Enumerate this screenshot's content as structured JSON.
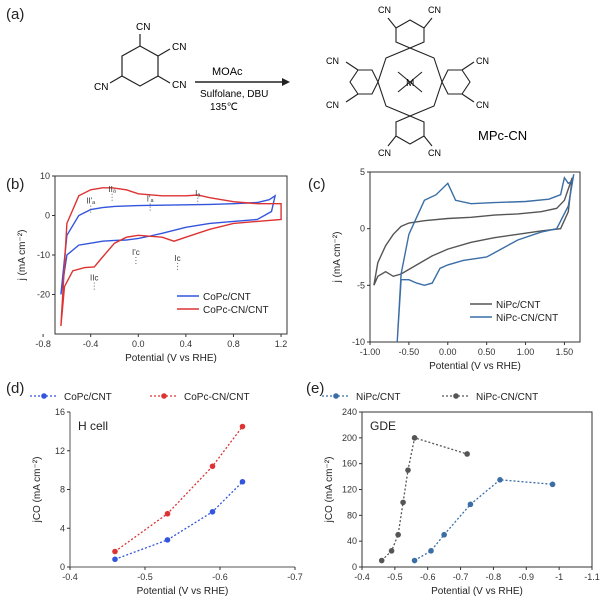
{
  "scheme": {
    "label": "(a)",
    "reactant_groups": [
      "CN",
      "CN",
      "CN",
      "CN"
    ],
    "reagent_top": "MOAc",
    "reagent_mid": "Sulfolane, DBU",
    "reagent_temp": "135℃",
    "product_groups": [
      "CN",
      "CN",
      "CN",
      "CN",
      "CN",
      "CN",
      "CN",
      "CN"
    ],
    "metal": "M",
    "product_name": "MPc-CN"
  },
  "colors": {
    "blue": "#3355dd",
    "red": "#dd3333",
    "gray": "#555555",
    "steel": "#3a6ea5"
  },
  "chart_data": [
    {
      "id": "b",
      "label": "(b)",
      "type": "line",
      "xlabel": "Potential (V vs RHE)",
      "ylabel": "j (mA cm⁻²)",
      "xlim": [
        -0.7,
        1.25
      ],
      "ylim": [
        -30,
        10
      ],
      "xticks": [
        "-0.8",
        "-0.4",
        "0.0",
        "0.4",
        "0.8",
        "1.2"
      ],
      "xtick_values": [
        -0.8,
        -0.4,
        0,
        0.4,
        0.8,
        1.2
      ],
      "yticks": [
        "10",
        "0",
        "-10",
        "-20"
      ],
      "ytick_values": [
        10,
        0,
        -10,
        -20
      ],
      "annotations": [
        {
          "text": "II'ₐ",
          "x": -0.4,
          "y": 3
        },
        {
          "text": "IIₐ",
          "x": -0.22,
          "y": 6
        },
        {
          "text": "I'ₐ",
          "x": 0.1,
          "y": 3.5
        },
        {
          "text": "Iₐ",
          "x": 0.5,
          "y": 5
        },
        {
          "text": "I'c",
          "x": -0.02,
          "y": -10
        },
        {
          "text": "Ic",
          "x": 0.33,
          "y": -11.5
        },
        {
          "text": "IIc",
          "x": -0.37,
          "y": -16.5
        }
      ],
      "series": [
        {
          "name": "CoPc/CNT",
          "color": "blue",
          "x": [
            -0.65,
            -0.6,
            -0.5,
            -0.4,
            -0.3,
            -0.2,
            0,
            0.2,
            0.4,
            0.6,
            0.8,
            1.0,
            1.1,
            1.15,
            1.12,
            1.0,
            0.8,
            0.6,
            0.4,
            0.2,
            0.1,
            0,
            -0.1,
            -0.2,
            -0.3,
            -0.4,
            -0.5,
            -0.6,
            -0.65
          ],
          "y": [
            -20,
            -5,
            0,
            1.5,
            2,
            2.3,
            2.5,
            2.6,
            2.7,
            2.8,
            3,
            3.3,
            4,
            5,
            1,
            -1,
            -1.5,
            -2,
            -3,
            -4.5,
            -5.2,
            -5.8,
            -6.2,
            -6.3,
            -6.5,
            -7,
            -7.5,
            -10,
            -20
          ]
        },
        {
          "name": "CoPc-CN/CNT",
          "color": "red",
          "x": [
            -0.65,
            -0.6,
            -0.5,
            -0.4,
            -0.3,
            -0.22,
            -0.1,
            0,
            0.2,
            0.4,
            0.5,
            0.6,
            0.8,
            1.0,
            1.2,
            1.2,
            1.0,
            0.8,
            0.6,
            0.4,
            0.3,
            0.2,
            0,
            -0.1,
            -0.2,
            -0.3,
            -0.37,
            -0.45,
            -0.55,
            -0.62,
            -0.65
          ],
          "y": [
            -28,
            -2,
            5,
            6.5,
            7,
            7,
            6.5,
            5.5,
            5,
            5,
            5.2,
            4.5,
            3.5,
            3,
            3,
            -1,
            -1.5,
            -2,
            -3.5,
            -5.5,
            -6.5,
            -5.5,
            -5,
            -5.5,
            -7,
            -10.5,
            -13,
            -13.2,
            -14,
            -18,
            -28
          ]
        }
      ],
      "legend": "bottom-right"
    },
    {
      "id": "c",
      "label": "(c)",
      "type": "line",
      "xlabel": "Potential (V vs RHE)",
      "ylabel": "j (mA cm⁻²)",
      "xlim": [
        -1.0,
        1.7
      ],
      "ylim": [
        -10,
        5
      ],
      "xticks": [
        "-1.00",
        "-0.50",
        "0.00",
        "0.50",
        "1.00",
        "1.50"
      ],
      "xtick_values": [
        -1.0,
        -0.5,
        0,
        0.5,
        1.0,
        1.5
      ],
      "yticks": [
        "5",
        "0",
        "-5",
        "-10"
      ],
      "ytick_values": [
        5,
        0,
        -5,
        -10
      ],
      "series": [
        {
          "name": "NiPc/CNT",
          "color": "gray",
          "x": [
            -0.95,
            -0.9,
            -0.8,
            -0.7,
            -0.6,
            -0.5,
            -0.3,
            0,
            0.3,
            0.6,
            0.9,
            1.2,
            1.4,
            1.5,
            1.55,
            1.6,
            1.55,
            1.45,
            1.2,
            0.9,
            0.6,
            0.3,
            0,
            -0.2,
            -0.4,
            -0.6,
            -0.7,
            -0.8,
            -0.9,
            -0.95
          ],
          "y": [
            -5,
            -3,
            -1.5,
            -0.5,
            0.2,
            0.5,
            0.7,
            0.9,
            1,
            1.2,
            1.3,
            1.5,
            1.8,
            2.5,
            3.5,
            4.5,
            1.5,
            0,
            -0.2,
            -0.5,
            -0.8,
            -1.2,
            -1.8,
            -2.4,
            -3.2,
            -4,
            -4.2,
            -3.8,
            -4.2,
            -5
          ]
        },
        {
          "name": "NiPc-CN/CNT",
          "color": "steel",
          "x": [
            -0.65,
            -0.6,
            -0.5,
            -0.3,
            -0.15,
            0,
            0.1,
            0.3,
            0.6,
            1.0,
            1.3,
            1.45,
            1.5,
            1.55,
            1.6,
            1.62,
            1.55,
            1.4,
            1.2,
            0.9,
            0.5,
            0.2,
            0,
            -0.1,
            -0.2,
            -0.3,
            -0.4,
            -0.5,
            -0.6,
            -0.65
          ],
          "y": [
            -10,
            -4,
            -0.5,
            2.5,
            3,
            4,
            2.5,
            2.2,
            2.3,
            2.4,
            2.6,
            3,
            4.5,
            4,
            4.2,
            4.8,
            2,
            0,
            -0.3,
            -1,
            -2.5,
            -2.8,
            -3.2,
            -3.5,
            -4.8,
            -5,
            -4.8,
            -4.5,
            -4.5,
            -10
          ]
        }
      ],
      "legend": "bottom-right"
    },
    {
      "id": "d",
      "label": "(d)",
      "type": "line",
      "inner_label": "H cell",
      "xlabel": "Potential (V vs RHE)",
      "ylabel": "jCO (mA cm⁻²)",
      "xlim": [
        -0.4,
        -0.7
      ],
      "ylim": [
        0,
        16
      ],
      "xticks": [
        "-0.4",
        "-0.5",
        "-0.6",
        "-0.7"
      ],
      "xtick_values": [
        -0.4,
        -0.5,
        -0.6,
        -0.7
      ],
      "yticks": [
        "0",
        "4",
        "8",
        "12",
        "16"
      ],
      "ytick_values": [
        0,
        4,
        8,
        12,
        16
      ],
      "series": [
        {
          "name": "CoPc/CNT",
          "color": "blue",
          "x": [
            -0.46,
            -0.53,
            -0.59,
            -0.63
          ],
          "y": [
            0.8,
            2.8,
            5.7,
            8.8
          ]
        },
        {
          "name": "CoPc-CN/CNT",
          "color": "red",
          "x": [
            -0.46,
            -0.53,
            -0.59,
            -0.63
          ],
          "y": [
            1.6,
            5.5,
            10.4,
            14.5
          ]
        }
      ],
      "legend": "top"
    },
    {
      "id": "e",
      "label": "(e)",
      "type": "line",
      "inner_label": "GDE",
      "xlabel": "Potential (V vs RHE)",
      "ylabel": "jCO (mA cm⁻²)",
      "xlim": [
        -0.4,
        -1.1
      ],
      "ylim": [
        0,
        240
      ],
      "xticks": [
        "-0.4",
        "-0.5",
        "-0.6",
        "-0.7",
        "-0.8",
        "-0.9",
        "-1",
        "-1.1"
      ],
      "xtick_values": [
        -0.4,
        -0.5,
        -0.6,
        -0.7,
        -0.8,
        -0.9,
        -1.0,
        -1.1
      ],
      "yticks": [
        "0",
        "40",
        "80",
        "120",
        "160",
        "200",
        "240"
      ],
      "ytick_values": [
        0,
        40,
        80,
        120,
        160,
        200,
        240
      ],
      "series": [
        {
          "name": "NiPc/CNT",
          "color": "steel",
          "x": [
            -0.56,
            -0.61,
            -0.65,
            -0.73,
            -0.82,
            -0.98
          ],
          "y": [
            10,
            25,
            50,
            97,
            135,
            128
          ]
        },
        {
          "name": "NiPc-CN/CNT",
          "color": "gray",
          "x": [
            -0.46,
            -0.49,
            -0.51,
            -0.525,
            -0.54,
            -0.56,
            -0.72
          ],
          "y": [
            10,
            25,
            50,
            100,
            150,
            200,
            175
          ]
        }
      ],
      "legend": "top"
    }
  ]
}
